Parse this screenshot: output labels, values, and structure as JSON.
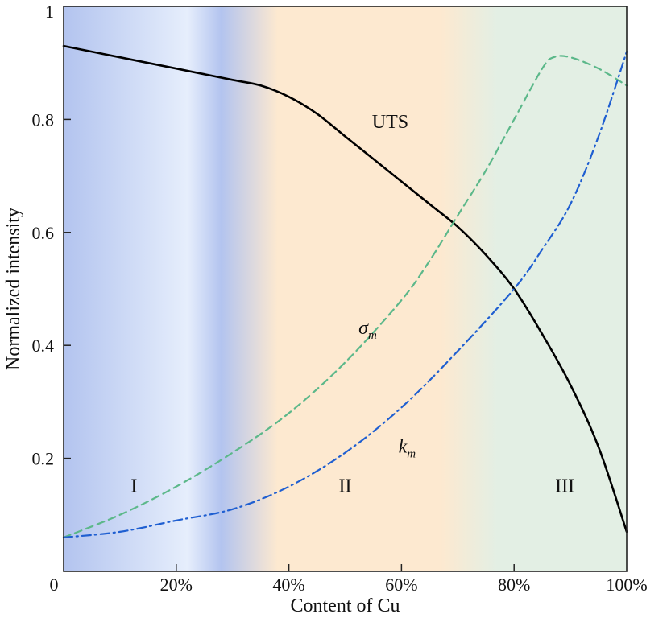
{
  "chart_data": {
    "type": "line",
    "title": "",
    "xlabel": "Content of Cu",
    "ylabel": "Normalized intensity",
    "xlim": [
      0,
      100
    ],
    "ylim": [
      0,
      1
    ],
    "grid": false,
    "x_ticks": [
      {
        "value": 0,
        "label": "0"
      },
      {
        "value": 20,
        "label": "20%"
      },
      {
        "value": 40,
        "label": "40%"
      },
      {
        "value": 60,
        "label": "60%"
      },
      {
        "value": 80,
        "label": "80%"
      },
      {
        "value": 100,
        "label": "100%"
      }
    ],
    "y_ticks": [
      {
        "value": 0.2,
        "label": "0.2"
      },
      {
        "value": 0.4,
        "label": "0.4"
      },
      {
        "value": 0.6,
        "label": "0.6"
      },
      {
        "value": 0.8,
        "label": "0.8"
      },
      {
        "value": 1.0,
        "label": "1"
      }
    ],
    "regions": [
      {
        "label": "I",
        "x_start": 0,
        "x_end": 33,
        "color": "#b3c4ef",
        "label_x": 12.5,
        "label_y": 0.14
      },
      {
        "label": "II",
        "x_start": 33,
        "x_end": 72,
        "color": "#fde9d0",
        "label_x": 50,
        "label_y": 0.14
      },
      {
        "label": "III",
        "x_start": 72,
        "x_end": 100,
        "color": "#e3efe4",
        "label_x": 89,
        "label_y": 0.14
      }
    ],
    "series": [
      {
        "name": "UTS",
        "label_text": "UTS",
        "label_at": {
          "x": 58,
          "y": 0.785
        },
        "color": "#000000",
        "style": "solid",
        "x": [
          0,
          10,
          20,
          30,
          35,
          40,
          45,
          50,
          55,
          60,
          65,
          70,
          75,
          80,
          85,
          90,
          95,
          100
        ],
        "y": [
          0.93,
          0.91,
          0.89,
          0.87,
          0.86,
          0.84,
          0.81,
          0.77,
          0.73,
          0.69,
          0.65,
          0.61,
          0.56,
          0.5,
          0.42,
          0.33,
          0.22,
          0.07
        ]
      },
      {
        "name": "σ_m",
        "label_text": "σ",
        "label_sub": "m",
        "label_at": {
          "x": 54,
          "y": 0.42
        },
        "color": "#5cb88a",
        "style": "dashed",
        "x": [
          0,
          10,
          20,
          30,
          40,
          50,
          60,
          65,
          70,
          75,
          80,
          85,
          87,
          90,
          95,
          100
        ],
        "y": [
          0.06,
          0.1,
          0.15,
          0.21,
          0.28,
          0.37,
          0.48,
          0.55,
          0.63,
          0.71,
          0.8,
          0.89,
          0.91,
          0.91,
          0.89,
          0.86
        ]
      },
      {
        "name": "k_m",
        "label_text": "k",
        "label_sub": "m",
        "label_at": {
          "x": 61,
          "y": 0.21
        },
        "color": "#1f5fd1",
        "style": "dashdot",
        "x": [
          0,
          10,
          20,
          30,
          40,
          50,
          60,
          70,
          80,
          85,
          90,
          95,
          100
        ],
        "y": [
          0.06,
          0.07,
          0.09,
          0.11,
          0.15,
          0.21,
          0.29,
          0.39,
          0.5,
          0.57,
          0.65,
          0.77,
          0.92
        ]
      }
    ]
  }
}
